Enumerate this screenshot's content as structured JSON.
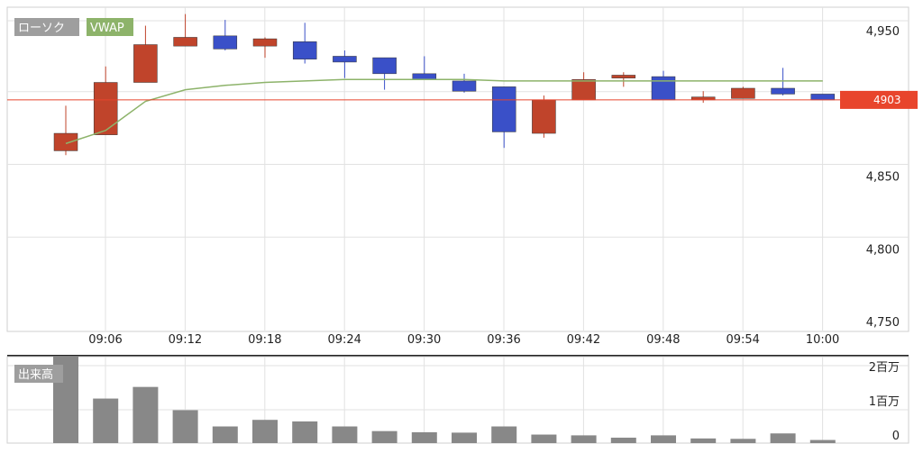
{
  "chart_data": [
    {
      "type": "candlestick",
      "title": "",
      "legend": [
        {
          "label": "ローソク",
          "color": "#9e9e9e"
        },
        {
          "label": "VWAP",
          "color": "#8db36a"
        }
      ],
      "x_tick_labels": [
        "09:06",
        "09:12",
        "09:18",
        "09:24",
        "09:30",
        "09:36",
        "09:42",
        "09:48",
        "09:54",
        "10:00"
      ],
      "y_tick_labels": [
        "4,950",
        "4,850",
        "4,800",
        "4,750"
      ],
      "y_ticks": [
        4950,
        4850,
        4800,
        4750
      ],
      "ylim": [
        4740,
        4960
      ],
      "grid": true,
      "current_price": {
        "label": "4903",
        "value": 4903,
        "color": "#e8452c"
      },
      "up_color": "#c0442b",
      "down_color": "#3a50c8",
      "candles": [
        {
          "time": "09:02",
          "open": 4868,
          "high": 4899,
          "low": 4865,
          "close": 4880
        },
        {
          "time": "09:05",
          "open": 4879,
          "high": 4926,
          "low": 4879,
          "close": 4915
        },
        {
          "time": "09:08",
          "open": 4915,
          "high": 4954,
          "low": 4915,
          "close": 4941
        },
        {
          "time": "09:11",
          "open": 4940,
          "high": 4962,
          "low": 4940,
          "close": 4946
        },
        {
          "time": "09:14",
          "open": 4947,
          "high": 4958,
          "low": 4937,
          "close": 4938
        },
        {
          "time": "09:17",
          "open": 4940,
          "high": 4946,
          "low": 4932,
          "close": 4945
        },
        {
          "time": "09:20",
          "open": 4943,
          "high": 4956,
          "low": 4928,
          "close": 4931
        },
        {
          "time": "09:23",
          "open": 4933,
          "high": 4937,
          "low": 4918,
          "close": 4929
        },
        {
          "time": "09:26",
          "open": 4932,
          "high": 4932,
          "low": 4910,
          "close": 4921
        },
        {
          "time": "09:29",
          "open": 4921,
          "high": 4933,
          "low": 4917,
          "close": 4917
        },
        {
          "time": "09:32",
          "open": 4916,
          "high": 4921,
          "low": 4908,
          "close": 4909
        },
        {
          "time": "09:35",
          "open": 4912,
          "high": 4912,
          "low": 4870,
          "close": 4881
        },
        {
          "time": "09:38",
          "open": 4880,
          "high": 4906,
          "low": 4877,
          "close": 4903
        },
        {
          "time": "09:41",
          "open": 4903,
          "high": 4922,
          "low": 4903,
          "close": 4917
        },
        {
          "time": "09:44",
          "open": 4918,
          "high": 4922,
          "low": 4912,
          "close": 4920
        },
        {
          "time": "09:47",
          "open": 4919,
          "high": 4923,
          "low": 4903,
          "close": 4903
        },
        {
          "time": "09:50",
          "open": 4903,
          "high": 4909,
          "low": 4901,
          "close": 4905
        },
        {
          "time": "09:53",
          "open": 4904,
          "high": 4912,
          "low": 4904,
          "close": 4911
        },
        {
          "time": "09:56",
          "open": 4911,
          "high": 4925,
          "low": 4906,
          "close": 4907
        },
        {
          "time": "09:59",
          "open": 4907,
          "high": 4907,
          "low": 4903,
          "close": 4903
        }
      ],
      "vwap": [
        4873,
        4882,
        4902,
        4910,
        4913,
        4915,
        4916,
        4917,
        4917,
        4917,
        4917,
        4916,
        4916,
        4916,
        4916,
        4916,
        4916,
        4916,
        4916,
        4916
      ]
    },
    {
      "type": "bar",
      "title": "",
      "legend": [
        {
          "label": "出来高",
          "color": "#9e9e9e"
        }
      ],
      "y_tick_labels": [
        "2百万",
        "1百万",
        "0"
      ],
      "y_ticks": [
        2000000,
        1000000,
        0
      ],
      "ylim": [
        0,
        2500000
      ],
      "bar_color": "#888888",
      "values": [
        2450000,
        1150000,
        1450000,
        850000,
        430000,
        600000,
        560000,
        430000,
        310000,
        280000,
        270000,
        430000,
        220000,
        200000,
        140000,
        200000,
        120000,
        110000,
        250000,
        80000
      ]
    }
  ]
}
